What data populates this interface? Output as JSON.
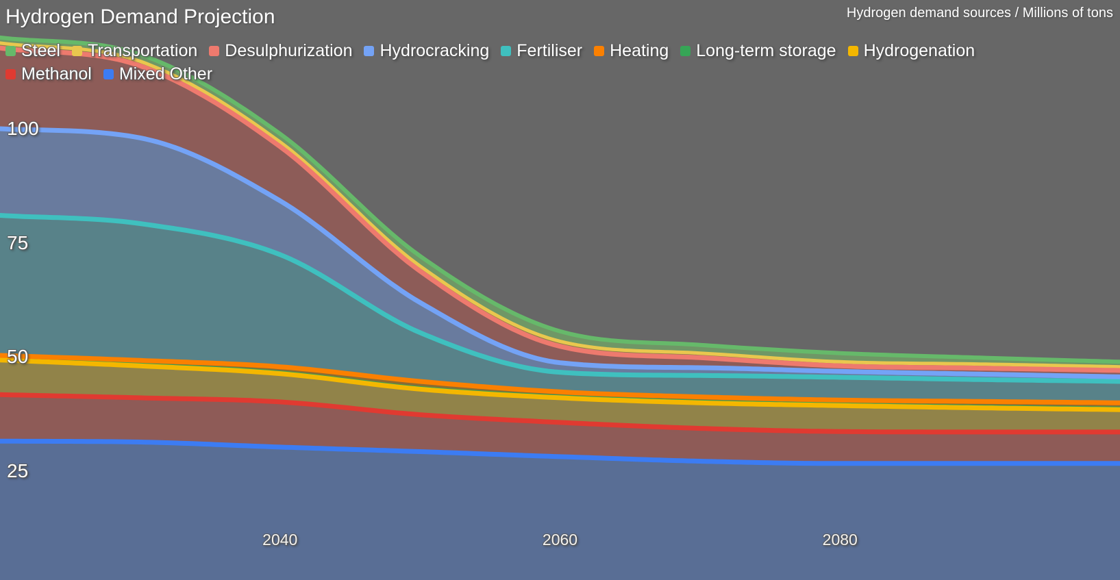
{
  "title": "Hydrogen Demand Projection",
  "subtitle": "Hydrogen demand sources / Millions of tons",
  "background_color": "#676767",
  "chart_data": {
    "type": "area",
    "stacked": true,
    "title": "Hydrogen Demand Projection",
    "subtitle": "Hydrogen demand sources / Millions of tons",
    "xlabel": "",
    "ylabel": "Millions of tons",
    "x": [
      2020,
      2030,
      2040,
      2050,
      2060,
      2070,
      2080,
      2090,
      2100
    ],
    "x_ticks": [
      2040,
      2060,
      2080
    ],
    "y_ticks": [
      100,
      75,
      50,
      25
    ],
    "xlim": [
      2020,
      2100
    ],
    "grid": false,
    "legend_position": "top",
    "series": [
      {
        "name": "Steel",
        "color": "#66b96a",
        "fill": "#6f9766",
        "values": [
          1.2,
          1.5,
          1.8,
          2.2,
          2.2,
          1.8,
          1.9,
          1.4,
          1.1
        ]
      },
      {
        "name": "Transportation",
        "color": "#e9c74e",
        "fill": "#8c7f4b",
        "values": [
          1.1,
          1.0,
          1.0,
          1.1,
          1.1,
          1.0,
          0.9,
          0.9,
          0.8
        ]
      },
      {
        "name": "Desulphurization",
        "color": "#ee7a6e",
        "fill": "#8d5c58",
        "values": [
          17.7,
          15.8,
          11.9,
          6.9,
          3.6,
          2.2,
          1.2,
          1.3,
          1.4
        ]
      },
      {
        "name": "Hydrocracking",
        "color": "#74a3f6",
        "fill": "#697b9e",
        "values": [
          19.0,
          18.8,
          11.8,
          6.6,
          2.1,
          1.7,
          1.3,
          1.2,
          1.0
        ]
      },
      {
        "name": "Fertiliser",
        "color": "#3fc0bf",
        "fill": "#588289",
        "values": [
          30.7,
          30.0,
          24.6,
          10.7,
          4.3,
          4.7,
          5.0,
          4.8,
          4.7
        ]
      },
      {
        "name": "Heating",
        "color": "#fb8000",
        "fill": "#8a6c33",
        "values": [
          0.7,
          0.9,
          1.2,
          1.4,
          1.0,
          1.0,
          0.9,
          1.1,
          1.2
        ]
      },
      {
        "name": "Long-term storage",
        "color": "#36a556",
        "fill": "#5d9355",
        "values": [
          0.3,
          0.3,
          0.3,
          0.3,
          0.3,
          0.3,
          0.3,
          0.3,
          0.3
        ]
      },
      {
        "name": "Hydrogenation",
        "color": "#f4b700",
        "fill": "#918349",
        "values": [
          7.6,
          7.0,
          6.2,
          5.6,
          5.4,
          5.6,
          5.7,
          5.3,
          4.9
        ]
      },
      {
        "name": "Methanol",
        "color": "#e03a31",
        "fill": "#8e5b57",
        "values": [
          10.2,
          9.7,
          9.9,
          8.1,
          7.5,
          7.2,
          7.0,
          6.9,
          6.9
        ]
      },
      {
        "name": "Mixed Other",
        "color": "#3c7cf3",
        "fill": "#596e95",
        "values": [
          31.5,
          31.3,
          30.2,
          29.2,
          28.1,
          27.1,
          26.6,
          26.6,
          26.6
        ]
      }
    ],
    "totals_by_year": [
      120.0,
      116.3,
      98.9,
      72.1,
      55.6,
      52.6,
      50.8,
      49.8,
      48.9
    ]
  }
}
